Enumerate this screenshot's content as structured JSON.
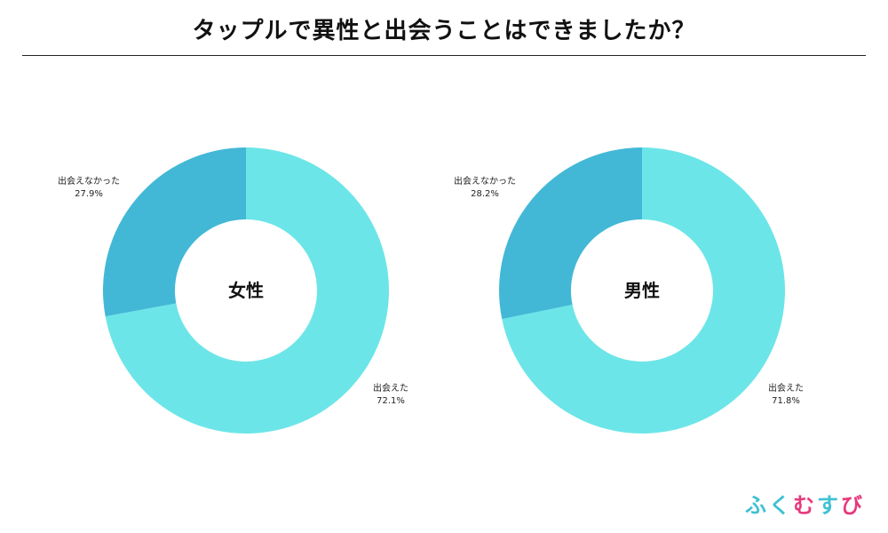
{
  "title": "タップルで異性と出会うことはできましたか？",
  "chart_data": [
    {
      "type": "pie",
      "center_label": "女性",
      "slices": [
        {
          "label": "出会えた",
          "value": 72.1,
          "value_label": "72.1%",
          "color": "#6ce5e8"
        },
        {
          "label": "出会えなかった",
          "value": 27.9,
          "value_label": "27.9%",
          "color": "#42b8d6"
        }
      ]
    },
    {
      "type": "pie",
      "center_label": "男性",
      "slices": [
        {
          "label": "出会えた",
          "value": 71.8,
          "value_label": "71.8%",
          "color": "#6ce5e8"
        },
        {
          "label": "出会えなかった",
          "value": 28.2,
          "value_label": "28.2%",
          "color": "#42b8d6"
        }
      ]
    }
  ],
  "logo": {
    "chars": [
      {
        "text": "ふ",
        "color": "#3ec1d3"
      },
      {
        "text": "く",
        "color": "#3ec1d3"
      },
      {
        "text": "む",
        "color": "#e6397c"
      },
      {
        "text": "す",
        "color": "#3ec1d3"
      },
      {
        "text": "び",
        "color": "#e6397c"
      }
    ]
  }
}
